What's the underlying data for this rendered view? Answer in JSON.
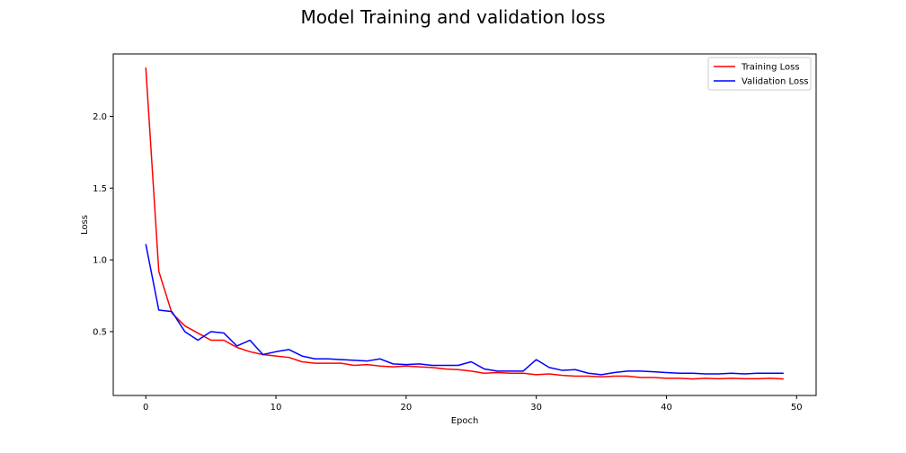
{
  "chart_data": {
    "type": "line",
    "title": "Model Training and validation loss",
    "xlabel": "Epoch",
    "ylabel": "Loss",
    "xlim": [
      -2.5,
      51.5
    ],
    "ylim": [
      0.055,
      2.435
    ],
    "xticks": [
      0,
      10,
      20,
      30,
      40,
      50
    ],
    "yticks": [
      0.5,
      1.0,
      1.5,
      2.0
    ],
    "xtick_labels": [
      "0",
      "10",
      "20",
      "30",
      "40",
      "50"
    ],
    "ytick_labels": [
      "0.5",
      "1.0",
      "1.5",
      "2.0"
    ],
    "grid": false,
    "legend_position": "top-right",
    "x": [
      0,
      1,
      2,
      3,
      4,
      5,
      6,
      7,
      8,
      9,
      10,
      11,
      12,
      13,
      14,
      15,
      16,
      17,
      18,
      19,
      20,
      21,
      22,
      23,
      24,
      25,
      26,
      27,
      28,
      29,
      30,
      31,
      32,
      33,
      34,
      35,
      36,
      37,
      38,
      39,
      40,
      41,
      42,
      43,
      44,
      45,
      46,
      47,
      48,
      49
    ],
    "series": [
      {
        "name": "Training Loss",
        "color": "#ff0000",
        "values": [
          2.34,
          0.92,
          0.63,
          0.54,
          0.49,
          0.44,
          0.44,
          0.39,
          0.36,
          0.34,
          0.33,
          0.32,
          0.29,
          0.28,
          0.28,
          0.28,
          0.265,
          0.27,
          0.26,
          0.255,
          0.26,
          0.255,
          0.25,
          0.24,
          0.235,
          0.225,
          0.21,
          0.215,
          0.21,
          0.21,
          0.2,
          0.205,
          0.195,
          0.19,
          0.19,
          0.185,
          0.19,
          0.19,
          0.18,
          0.18,
          0.175,
          0.175,
          0.17,
          0.175,
          0.172,
          0.175,
          0.172,
          0.172,
          0.175,
          0.17
        ]
      },
      {
        "name": "Validation Loss",
        "color": "#0000ff",
        "values": [
          1.11,
          0.65,
          0.64,
          0.5,
          0.44,
          0.5,
          0.49,
          0.4,
          0.44,
          0.34,
          0.36,
          0.375,
          0.33,
          0.31,
          0.31,
          0.305,
          0.3,
          0.295,
          0.31,
          0.275,
          0.27,
          0.275,
          0.265,
          0.265,
          0.265,
          0.29,
          0.24,
          0.225,
          0.225,
          0.225,
          0.305,
          0.25,
          0.23,
          0.235,
          0.21,
          0.2,
          0.215,
          0.225,
          0.225,
          0.22,
          0.215,
          0.21,
          0.21,
          0.205,
          0.205,
          0.21,
          0.205,
          0.21,
          0.21,
          0.21
        ]
      }
    ]
  }
}
